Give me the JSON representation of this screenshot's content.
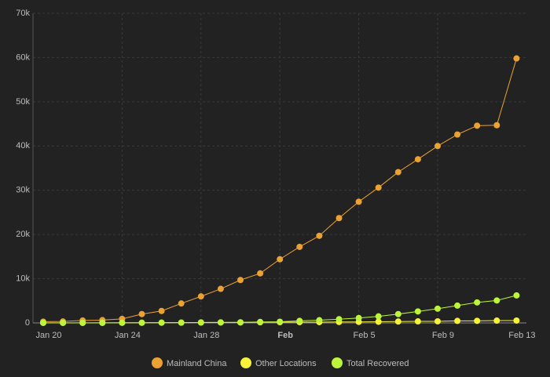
{
  "chart_data": {
    "type": "line",
    "x": [
      "Jan 20",
      "Jan 21",
      "Jan 22",
      "Jan 23",
      "Jan 24",
      "Jan 25",
      "Jan 26",
      "Jan 27",
      "Jan 28",
      "Jan 29",
      "Jan 30",
      "Jan 31",
      "Feb 1",
      "Feb 2",
      "Feb 3",
      "Feb 4",
      "Feb 5",
      "Feb 6",
      "Feb 7",
      "Feb 8",
      "Feb 9",
      "Feb 10",
      "Feb 11",
      "Feb 12",
      "Feb 13"
    ],
    "series": [
      {
        "name": "Mainland China",
        "color": "#eba232",
        "values": [
          278,
          326,
          547,
          639,
          916,
          2000,
          2700,
          4400,
          6000,
          7700,
          9700,
          11200,
          14400,
          17200,
          19700,
          23700,
          27400,
          30600,
          34100,
          37000,
          40000,
          42600,
          44600,
          44700,
          59800
        ]
      },
      {
        "name": "Other Locations",
        "color": "#f7f33b",
        "values": [
          4,
          6,
          8,
          14,
          25,
          40,
          57,
          64,
          87,
          105,
          118,
          153,
          173,
          183,
          188,
          212,
          227,
          265,
          317,
          344,
          361,
          457,
          476,
          523,
          538
        ]
      },
      {
        "name": "Total Recovered",
        "color": "#bdf53b",
        "values": [
          25,
          25,
          28,
          30,
          36,
          39,
          49,
          58,
          101,
          120,
          135,
          214,
          275,
          463,
          614,
          843,
          1115,
          1477,
          1999,
          2596,
          3219,
          3918,
          4636,
          5082,
          6217
        ]
      }
    ],
    "ylim": [
      0,
      70000
    ],
    "yticks": [
      0,
      {
        "value": 10000,
        "label": "10k"
      },
      {
        "value": 20000,
        "label": "20k"
      },
      {
        "value": 30000,
        "label": "30k"
      },
      {
        "value": 40000,
        "label": "40k"
      },
      {
        "value": 50000,
        "label": "50k"
      },
      {
        "value": 60000,
        "label": "60k"
      },
      {
        "value": 70000,
        "label": "70k"
      }
    ],
    "xticks": [
      "Jan 20",
      "Jan 24",
      "Jan 28",
      {
        "value": "Feb 1",
        "label": "Feb"
      },
      "Feb 5",
      "Feb 9",
      "Feb 13"
    ],
    "grid": true
  }
}
